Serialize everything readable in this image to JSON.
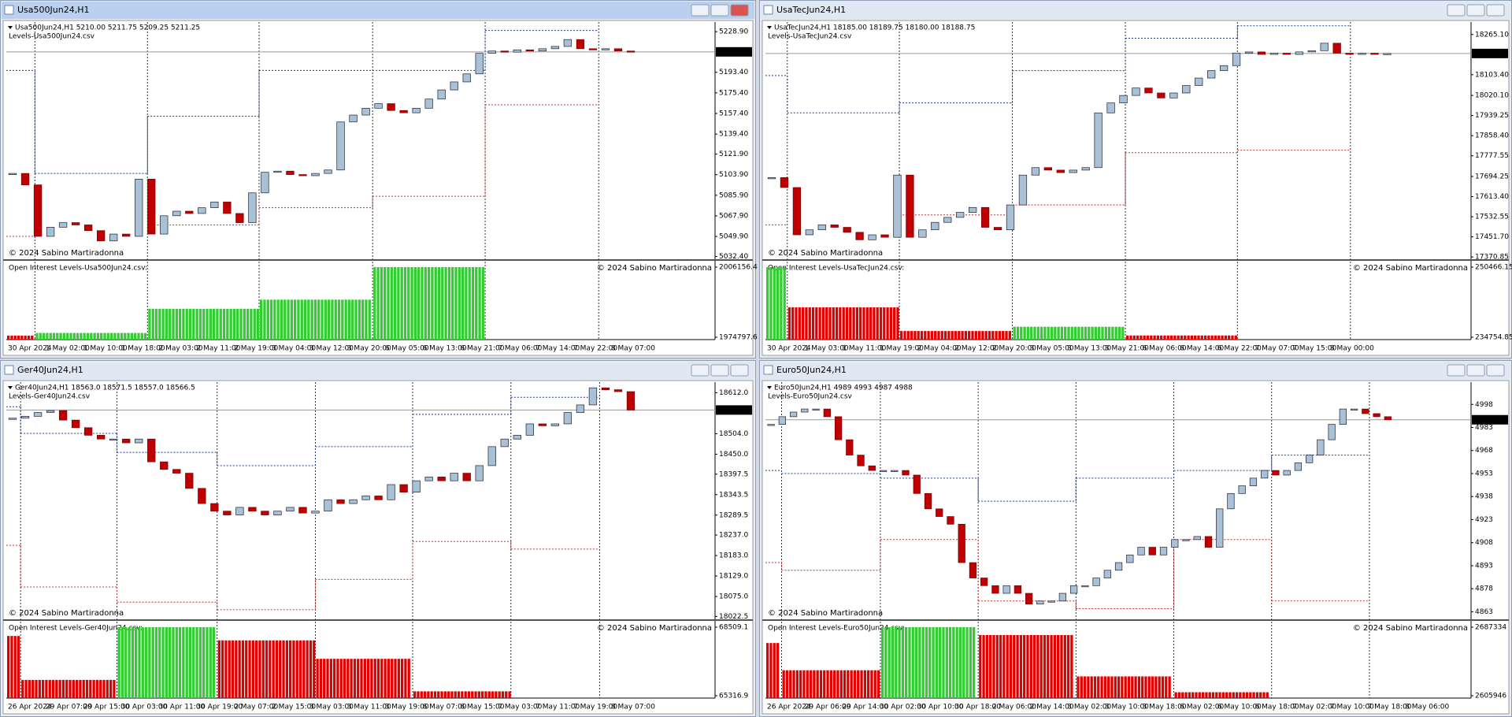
{
  "windows": [
    {
      "title": "Usa500Jun24,H1",
      "header": "Usa500Jun24,H1  5210.00 5211.75 5209.25 5211.25",
      "levels_file": "Levels-Usa500Jun24.csv",
      "copyright": "© 2024 Sabino Martiradonna",
      "oi_label": "Open Interest Levels-Usa500Jun24.csv:",
      "ylim": [
        5030.7,
        5237.3
      ],
      "yticks": [
        {
          "value": 5228.9,
          "label": "5228.90"
        },
        {
          "value": 5193.4,
          "label": "5193.40"
        },
        {
          "value": 5175.4,
          "label": "5175.40"
        },
        {
          "value": 5157.4,
          "label": "5157.40"
        },
        {
          "value": 5139.4,
          "label": "5139.40"
        },
        {
          "value": 5121.9,
          "label": "5121.90"
        },
        {
          "value": 5103.9,
          "label": "5103.90"
        },
        {
          "value": 5085.9,
          "label": "5085.90"
        },
        {
          "value": 5067.9,
          "label": "5067.90"
        },
        {
          "value": 5049.9,
          "label": "5049.90"
        },
        {
          "value": 5032.4,
          "label": "5032.40"
        }
      ],
      "current": 5211.25,
      "closes": [
        5105,
        5095,
        5050,
        5058,
        5062,
        5060,
        5055,
        5046,
        5052,
        5050,
        5100,
        5052,
        5068,
        5072,
        5070,
        5075,
        5080,
        5070,
        5062,
        5088,
        5106,
        5107,
        5104,
        5103,
        5105,
        5108,
        5150,
        5156,
        5162,
        5166,
        5160,
        5158,
        5162,
        5170,
        5178,
        5185,
        5192,
        5210,
        5212,
        5211,
        5213,
        5212,
        5214,
        5216,
        5222,
        5214,
        5213,
        5214,
        5212,
        5211.25
      ],
      "resistance": [
        5195,
        5105,
        5155,
        5195,
        5195,
        5230,
        null
      ],
      "support": [
        5050,
        null,
        5060,
        5075,
        5085,
        5165,
        null
      ],
      "oi_ylim": [
        1974797.6,
        2006156.4
      ],
      "oi_yticks": [
        2006156.4,
        1974797.6
      ],
      "oi_values": [
        1975500,
        1976700,
        1987500,
        1991600,
        2006156.4,
        null,
        null
      ],
      "oi_colors": [
        "#e00000",
        "#33cc33",
        "#33cc33",
        "#33cc33",
        "#33cc33",
        null,
        null
      ],
      "time_labels": [
        "30 Apr 2024",
        "1 May 02:00",
        "1 May 10:00",
        "1 May 18:00",
        "2 May 03:00",
        "2 May 11:00",
        "2 May 19:00",
        "3 May 04:00",
        "3 May 12:00",
        "3 May 20:00",
        "6 May 05:00",
        "6 May 13:00",
        "6 May 21:00",
        "7 May 06:00",
        "7 May 14:00",
        "7 May 22:00",
        "8 May 07:00"
      ]
    },
    {
      "title": "UsaTecJun24,H1",
      "header": "UsaTecJun24,H1  18185.00 18189.75 18180.00 18188.75",
      "levels_file": "Levels-UsaTecJun24.csv",
      "copyright": "© 2024 Sabino Martiradonna",
      "oi_label": "Open Interest Levels-UsaTecJun24.csv:",
      "ylim": [
        17365,
        18315
      ],
      "yticks": [
        {
          "value": 18265.1,
          "label": "18265.10"
        },
        {
          "value": 18103.4,
          "label": "18103.40"
        },
        {
          "value": 18020.1,
          "label": "18020.10"
        },
        17939.25,
        {
          "value": 17858.4,
          "label": "17858.40"
        },
        17777.55,
        17694.25,
        {
          "value": 17613.4,
          "label": "17613.40"
        },
        17532.55,
        {
          "value": 17451.7,
          "label": "17451.70"
        },
        17370.85
      ],
      "current": 18188.75,
      "closes": [
        17690,
        17650,
        17460,
        17480,
        17500,
        17490,
        17470,
        17440,
        17460,
        17450,
        17700,
        17450,
        17480,
        17510,
        17530,
        17550,
        17570,
        17490,
        17480,
        17580,
        17700,
        17730,
        17720,
        17710,
        17720,
        17730,
        17950,
        17990,
        18020,
        18050,
        18030,
        18010,
        18030,
        18060,
        18090,
        18120,
        18140,
        18190,
        18195,
        18185,
        18190,
        18185,
        18195,
        18200,
        18230,
        18190,
        18185,
        18190,
        18185,
        18188.75
      ],
      "resistance": [
        18100,
        17950,
        17990,
        18120,
        18250,
        18300,
        null
      ],
      "support": [
        17500,
        null,
        17540,
        17580,
        17790,
        17800,
        null
      ],
      "oi_ylim": [
        234754.85,
        250466.15
      ],
      "oi_yticks": [
        250466.15,
        234754.85
      ],
      "oi_values": [
        250466.15,
        241450,
        236150,
        237100,
        235150,
        null,
        null
      ],
      "oi_colors": [
        "#33cc33",
        "#e00000",
        "#e00000",
        "#33cc33",
        "#e00000",
        null,
        null
      ],
      "time_labels": [
        "30 Apr 2024",
        "1 May 03:00",
        "1 May 11:00",
        "1 May 19:00",
        "2 May 04:00",
        "2 May 12:00",
        "2 May 20:00",
        "3 May 05:00",
        "3 May 13:00",
        "3 May 21:00",
        "6 May 06:00",
        "6 May 14:00",
        "6 May 22:00",
        "7 May 07:00",
        "7 May 15:00",
        "8 May 00:00"
      ]
    },
    {
      "title": "Ger40Jun24,H1",
      "header": "Ger40Jun24,H1  18563.0 18571.5 18557.0 18566.5",
      "levels_file": "Levels-Ger40Jun24.csv",
      "copyright": "© 2024 Sabino Martiradonna",
      "oi_label": "Open Interest Levels-Ger40Jun24.csv:",
      "ylim": [
        18017,
        18640
      ],
      "yticks": [
        {
          "value": 18612,
          "label": "18612.0"
        },
        {
          "value": 18504,
          "label": "18504.0"
        },
        {
          "value": 18450,
          "label": "18450.0"
        },
        18397.5,
        18343.5,
        18289.5,
        {
          "value": 18237,
          "label": "18237.0"
        },
        {
          "value": 18183,
          "label": "18183.0"
        },
        {
          "value": 18129,
          "label": "18129.0"
        },
        {
          "value": 18075,
          "label": "18075.0"
        },
        18022.5
      ],
      "current": 18566.5,
      "closes": [
        18545,
        18550,
        18560,
        18565,
        18540,
        18520,
        18500,
        18490,
        18490,
        18480,
        18490,
        18430,
        18410,
        18400,
        18360,
        18320,
        18300,
        18290,
        18310,
        18300,
        18290,
        18300,
        18310,
        18295,
        18300,
        18330,
        18320,
        18330,
        18340,
        18330,
        18370,
        18350,
        18380,
        18390,
        18380,
        18400,
        18380,
        18420,
        18470,
        18490,
        18500,
        18530,
        18525,
        18530,
        18560,
        18580,
        18625,
        18620,
        18615,
        18566.5
      ],
      "resistance": [
        18575,
        18505,
        18455,
        18420,
        18470,
        18555,
        18600,
        null
      ],
      "support": [
        18210,
        18100,
        18060,
        18040,
        18120,
        18220,
        18200,
        null
      ],
      "oi_ylim": [
        65316.9,
        68509.1
      ],
      "oi_yticks": [
        68509.1,
        65316.9
      ],
      "oi_values": [
        68100,
        66054,
        68509.1,
        67895,
        67036,
        65522,
        null,
        null
      ],
      "oi_colors": [
        "#e00000",
        "#e00000",
        "#33cc33",
        "#e00000",
        "#e00000",
        "#e00000",
        null,
        null
      ],
      "time_labels": [
        "26 Apr 2024",
        "29 Apr 07:00",
        "29 Apr 15:00",
        "30 Apr 03:00",
        "30 Apr 11:00",
        "30 Apr 19:00",
        "2 May 07:00",
        "2 May 15:00",
        "3 May 03:00",
        "3 May 11:00",
        "3 May 19:00",
        "6 May 07:00",
        "6 May 15:00",
        "7 May 03:00",
        "7 May 11:00",
        "7 May 19:00",
        "8 May 07:00"
      ]
    },
    {
      "title": "Euro50Jun24,H1",
      "header": "Euro50Jun24,H1  4989 4993 4987 4988",
      "levels_file": "Levels-Euro50Jun24.csv",
      "copyright": "© 2024 Sabino Martiradonna",
      "oi_label": "Open Interest Levels-Euro50Jun24.csv:",
      "ylim": [
        4858.6,
        5012.5
      ],
      "yticks": [
        4998,
        4983,
        4968,
        4953,
        4938,
        4923,
        4908,
        4893,
        4878,
        4863
      ],
      "current": 4988,
      "closes": [
        4985,
        4990,
        4993,
        4995,
        4995,
        4990,
        4975,
        4965,
        4958,
        4955,
        4955,
        4955,
        4952,
        4940,
        4930,
        4925,
        4920,
        4895,
        4885,
        4880,
        4875,
        4880,
        4875,
        4868,
        4870,
        4870,
        4875,
        4880,
        4880,
        4885,
        4890,
        4895,
        4900,
        4905,
        4900,
        4905,
        4910,
        4910,
        4912,
        4905,
        4930,
        4940,
        4945,
        4950,
        4955,
        4952,
        4955,
        4960,
        4965,
        4975,
        4985,
        4995,
        4995,
        4992,
        4990,
        4988
      ],
      "resistance": [
        4955,
        4953,
        4950,
        4935,
        4950,
        4955,
        4965,
        null
      ],
      "support": [
        4895,
        4890,
        4910,
        4870,
        4865,
        4910,
        4870,
        null
      ],
      "oi_ylim": [
        2605946,
        2687334
      ],
      "oi_yticks": [
        2687334,
        2605946
      ],
      "oi_values": [
        2668500,
        2636200,
        2687334,
        2678000,
        2628900,
        2610100,
        null,
        null
      ],
      "oi_colors": [
        "#e00000",
        "#e00000",
        "#33cc33",
        "#e00000",
        "#e00000",
        "#e00000",
        null,
        null
      ],
      "time_labels": [
        "26 Apr 2024",
        "29 Apr 06:00",
        "29 Apr 14:00",
        "30 Apr 02:00",
        "30 Apr 10:00",
        "30 Apr 18:00",
        "2 May 06:00",
        "2 May 14:00",
        "3 May 02:00",
        "3 May 10:00",
        "3 May 18:00",
        "6 May 02:00",
        "6 May 10:00",
        "6 May 18:00",
        "7 May 02:00",
        "7 May 10:00",
        "7 May 18:00",
        "8 May 06:00"
      ]
    }
  ]
}
